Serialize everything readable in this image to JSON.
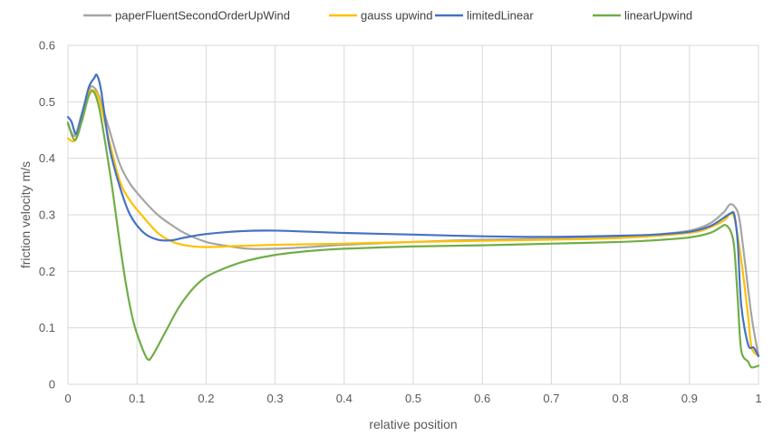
{
  "chart_data": {
    "type": "line",
    "title": "",
    "xlabel": "relative position",
    "ylabel": "friction velocity m/s",
    "xlim": [
      0,
      1
    ],
    "ylim": [
      0,
      0.6
    ],
    "x_ticks": [
      "0",
      "0.1",
      "0.2",
      "0.3",
      "0.4",
      "0.5",
      "0.6",
      "0.7",
      "0.8",
      "0.9",
      "1"
    ],
    "y_ticks": [
      "0",
      "0.1",
      "0.2",
      "0.3",
      "0.4",
      "0.5",
      "0.6"
    ],
    "grid": true,
    "legend_position": "top",
    "series": [
      {
        "name": "paperFluentSecondOrderUpWind",
        "color": "#a5a5a5",
        "points": [
          [
            0,
            0.46
          ],
          [
            0.01,
            0.44
          ],
          [
            0.02,
            0.48
          ],
          [
            0.03,
            0.52
          ],
          [
            0.036,
            0.527
          ],
          [
            0.045,
            0.51
          ],
          [
            0.06,
            0.45
          ],
          [
            0.075,
            0.39
          ],
          [
            0.09,
            0.355
          ],
          [
            0.11,
            0.325
          ],
          [
            0.13,
            0.3
          ],
          [
            0.15,
            0.282
          ],
          [
            0.17,
            0.267
          ],
          [
            0.2,
            0.252
          ],
          [
            0.23,
            0.245
          ],
          [
            0.26,
            0.24
          ],
          [
            0.3,
            0.24
          ],
          [
            0.35,
            0.243
          ],
          [
            0.4,
            0.247
          ],
          [
            0.5,
            0.252
          ],
          [
            0.6,
            0.256
          ],
          [
            0.7,
            0.258
          ],
          [
            0.8,
            0.262
          ],
          [
            0.85,
            0.265
          ],
          [
            0.9,
            0.272
          ],
          [
            0.93,
            0.285
          ],
          [
            0.95,
            0.305
          ],
          [
            0.958,
            0.318
          ],
          [
            0.965,
            0.315
          ],
          [
            0.972,
            0.295
          ],
          [
            0.98,
            0.22
          ],
          [
            0.99,
            0.12
          ],
          [
            1.0,
            0.05
          ]
        ]
      },
      {
        "name": "gauss upwind",
        "color": "#ffc000",
        "points": [
          [
            0,
            0.435
          ],
          [
            0.01,
            0.432
          ],
          [
            0.02,
            0.47
          ],
          [
            0.03,
            0.515
          ],
          [
            0.037,
            0.52
          ],
          [
            0.045,
            0.505
          ],
          [
            0.06,
            0.43
          ],
          [
            0.075,
            0.36
          ],
          [
            0.09,
            0.325
          ],
          [
            0.11,
            0.295
          ],
          [
            0.13,
            0.268
          ],
          [
            0.15,
            0.253
          ],
          [
            0.17,
            0.246
          ],
          [
            0.2,
            0.243
          ],
          [
            0.25,
            0.245
          ],
          [
            0.3,
            0.247
          ],
          [
            0.4,
            0.249
          ],
          [
            0.5,
            0.252
          ],
          [
            0.6,
            0.254
          ],
          [
            0.7,
            0.256
          ],
          [
            0.8,
            0.259
          ],
          [
            0.9,
            0.268
          ],
          [
            0.93,
            0.278
          ],
          [
            0.95,
            0.29
          ],
          [
            0.958,
            0.3
          ],
          [
            0.965,
            0.295
          ],
          [
            0.975,
            0.22
          ],
          [
            0.985,
            0.12
          ],
          [
            0.99,
            0.065
          ],
          [
            1.0,
            0.05
          ]
        ]
      },
      {
        "name": "limitedLinear",
        "color": "#4472c4",
        "points": [
          [
            0,
            0.473
          ],
          [
            0.005,
            0.465
          ],
          [
            0.012,
            0.443
          ],
          [
            0.02,
            0.475
          ],
          [
            0.03,
            0.525
          ],
          [
            0.038,
            0.542
          ],
          [
            0.042,
            0.547
          ],
          [
            0.048,
            0.52
          ],
          [
            0.06,
            0.42
          ],
          [
            0.075,
            0.35
          ],
          [
            0.09,
            0.3
          ],
          [
            0.11,
            0.268
          ],
          [
            0.13,
            0.256
          ],
          [
            0.15,
            0.255
          ],
          [
            0.17,
            0.26
          ],
          [
            0.2,
            0.266
          ],
          [
            0.25,
            0.271
          ],
          [
            0.3,
            0.272
          ],
          [
            0.4,
            0.268
          ],
          [
            0.5,
            0.265
          ],
          [
            0.6,
            0.262
          ],
          [
            0.7,
            0.261
          ],
          [
            0.8,
            0.263
          ],
          [
            0.85,
            0.265
          ],
          [
            0.9,
            0.27
          ],
          [
            0.93,
            0.28
          ],
          [
            0.95,
            0.295
          ],
          [
            0.96,
            0.303
          ],
          [
            0.965,
            0.3
          ],
          [
            0.97,
            0.25
          ],
          [
            0.975,
            0.14
          ],
          [
            0.985,
            0.07
          ],
          [
            0.993,
            0.065
          ],
          [
            1.0,
            0.05
          ]
        ]
      },
      {
        "name": "linearUpwind",
        "color": "#70ad47",
        "points": [
          [
            0,
            0.463
          ],
          [
            0.01,
            0.432
          ],
          [
            0.02,
            0.465
          ],
          [
            0.03,
            0.51
          ],
          [
            0.037,
            0.518
          ],
          [
            0.045,
            0.49
          ],
          [
            0.055,
            0.42
          ],
          [
            0.065,
            0.34
          ],
          [
            0.075,
            0.25
          ],
          [
            0.085,
            0.17
          ],
          [
            0.095,
            0.11
          ],
          [
            0.105,
            0.072
          ],
          [
            0.115,
            0.045
          ],
          [
            0.122,
            0.05
          ],
          [
            0.14,
            0.09
          ],
          [
            0.16,
            0.135
          ],
          [
            0.18,
            0.168
          ],
          [
            0.2,
            0.19
          ],
          [
            0.23,
            0.207
          ],
          [
            0.26,
            0.219
          ],
          [
            0.3,
            0.229
          ],
          [
            0.35,
            0.236
          ],
          [
            0.4,
            0.24
          ],
          [
            0.5,
            0.244
          ],
          [
            0.6,
            0.246
          ],
          [
            0.7,
            0.249
          ],
          [
            0.8,
            0.252
          ],
          [
            0.85,
            0.255
          ],
          [
            0.9,
            0.26
          ],
          [
            0.93,
            0.268
          ],
          [
            0.945,
            0.278
          ],
          [
            0.952,
            0.282
          ],
          [
            0.96,
            0.27
          ],
          [
            0.965,
            0.24
          ],
          [
            0.97,
            0.15
          ],
          [
            0.975,
            0.06
          ],
          [
            0.985,
            0.04
          ],
          [
            0.99,
            0.03
          ],
          [
            1.0,
            0.033
          ]
        ]
      }
    ]
  }
}
